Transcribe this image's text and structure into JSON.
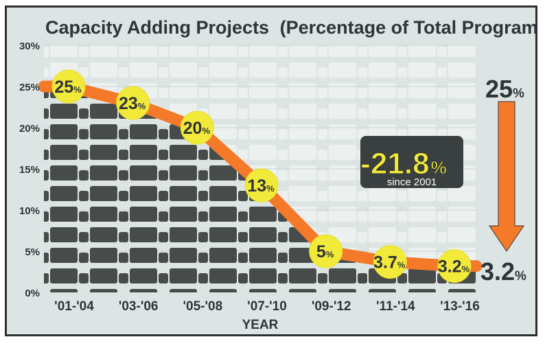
{
  "chart_data": {
    "type": "line",
    "title": "Capacity Adding Projects",
    "subtitle": "(Percentage of Total Program)",
    "xlabel": "YEAR",
    "ylabel": "",
    "categories": [
      "'01-'04",
      "'03-'06",
      "'05-'08",
      "'07-'10",
      "'09-'12",
      "'11-'14",
      "'13-'16"
    ],
    "values": [
      25,
      23,
      20,
      13,
      5,
      3.7,
      3.2
    ],
    "point_labels": [
      "25",
      "23",
      "20",
      "13",
      "5",
      "3.7",
      "3.2"
    ],
    "ylim": [
      0,
      30
    ],
    "yticks": [
      0,
      5,
      10,
      15,
      20,
      25,
      30
    ],
    "ytick_labels": [
      "0%",
      "5%",
      "10%",
      "15%",
      "20%",
      "25%",
      "30%"
    ],
    "grid": true,
    "annotations": {
      "change_value": "-21.8",
      "change_caption": "since 2001",
      "start_value": "25",
      "end_value": "3.2",
      "percent_sign": "%"
    },
    "colors": {
      "line": "#f47a29",
      "marker": "#f2ea3a",
      "fill": "#474c4a",
      "text": "#2f3436",
      "background": "#dde5e4"
    }
  }
}
